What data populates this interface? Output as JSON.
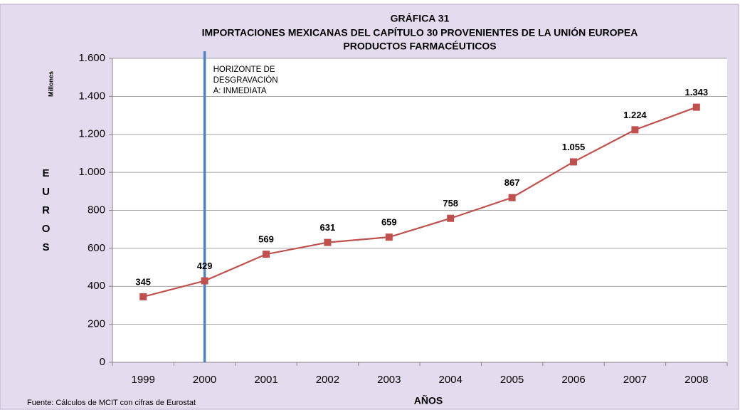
{
  "chart_data": {
    "type": "line",
    "title": "GRÁFICA 31",
    "subtitle": [
      "IMPORTACIONES MEXICANAS DEL CAPÍTULO 30 PROVENIENTES DE LA UNIÓN EUROPEA",
      "PRODUCTOS FARMACÉUTICOS"
    ],
    "y_unit": "Millones",
    "y_label": "EUROS",
    "x_label": "AÑOS",
    "source": "Fuente: Cálculos de MCIT con cifras de Eurostat",
    "annotation": [
      "HORIZONTE DE",
      "DESGRAVACIÓN",
      "A: INMEDIATA"
    ],
    "categories": [
      "1999",
      "2000",
      "2001",
      "2002",
      "2003",
      "2004",
      "2005",
      "2006",
      "2007",
      "2008"
    ],
    "series": [
      {
        "name": "Importaciones",
        "color": "#c0504d",
        "values": [
          345,
          429,
          569,
          631,
          659,
          758,
          867,
          1055,
          1224,
          1343
        ],
        "value_labels": [
          "345",
          "429",
          "569",
          "631",
          "659",
          "758",
          "867",
          "1.055",
          "1.224",
          "1.343"
        ]
      }
    ],
    "ylim": [
      0,
      1600
    ],
    "yticks": [
      0,
      200,
      400,
      600,
      800,
      {
        "value": 1000,
        "label": "1.000"
      },
      {
        "value": 1200,
        "label": "1.200"
      },
      {
        "value": 1400,
        "label": "1.400"
      },
      {
        "value": 1600,
        "label": "1.600"
      }
    ],
    "grid": true
  }
}
